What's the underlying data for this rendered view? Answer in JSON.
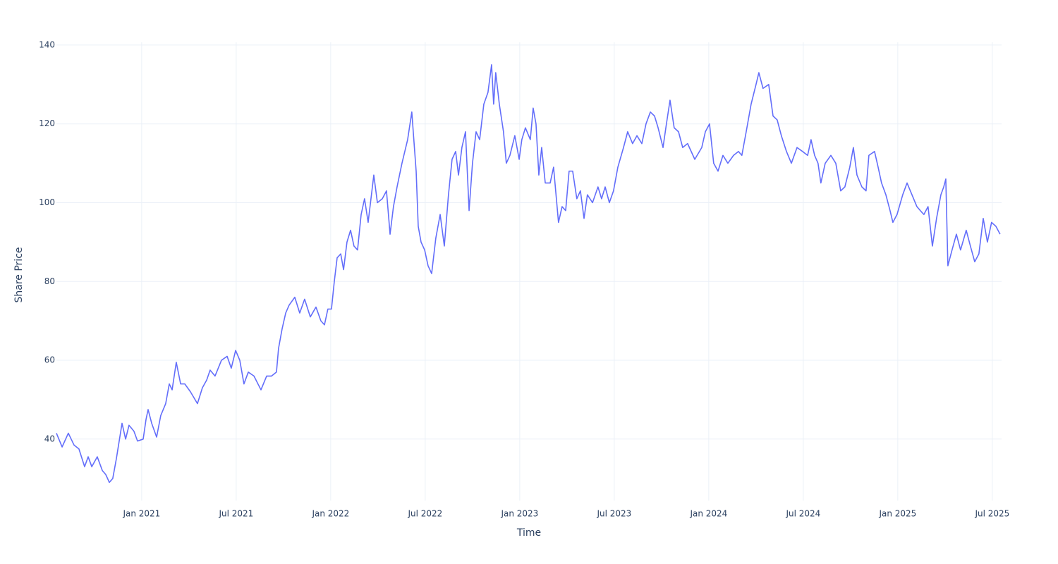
{
  "chart_data": {
    "type": "line",
    "x_label": "Time",
    "y_label": "Share Price",
    "color": "#636efa",
    "grid": true,
    "xlim": [
      2020.549,
      2025.549
    ],
    "ylim": [
      24.4,
      140.7
    ],
    "xticks": [
      {
        "value": 2021.0,
        "label": "Jan 2021"
      },
      {
        "value": 2021.5,
        "label": "Jul 2021"
      },
      {
        "value": 2022.0,
        "label": "Jan 2022"
      },
      {
        "value": 2022.5,
        "label": "Jul 2022"
      },
      {
        "value": 2023.0,
        "label": "Jan 2023"
      },
      {
        "value": 2023.5,
        "label": "Jul 2023"
      },
      {
        "value": 2024.0,
        "label": "Jan 2024"
      },
      {
        "value": 2024.5,
        "label": "Jul 2024"
      },
      {
        "value": 2025.0,
        "label": "Jan 2025"
      },
      {
        "value": 2025.5,
        "label": "Jul 2025"
      }
    ],
    "yticks": [
      40,
      60,
      80,
      100,
      120,
      140
    ],
    "x": [
      2020.549,
      2020.579,
      2020.612,
      2020.642,
      2020.668,
      2020.698,
      2020.717,
      2020.736,
      2020.765,
      2020.792,
      2020.81,
      2020.829,
      2020.847,
      2020.866,
      2020.896,
      2020.915,
      2020.933,
      2020.959,
      2020.978,
      2021.008,
      2021.023,
      2021.034,
      2021.053,
      2021.079,
      2021.101,
      2021.127,
      2021.146,
      2021.161,
      2021.183,
      2021.206,
      2021.228,
      2021.258,
      2021.295,
      2021.321,
      2021.344,
      2021.362,
      2021.388,
      2021.422,
      2021.452,
      2021.474,
      2021.497,
      2021.519,
      2021.541,
      2021.564,
      2021.594,
      2021.631,
      2021.661,
      2021.687,
      2021.713,
      2021.724,
      2021.743,
      2021.762,
      2021.78,
      2021.81,
      2021.836,
      2021.862,
      2021.892,
      2021.922,
      2021.948,
      2021.967,
      2021.985,
      2022.004,
      2022.019,
      2022.034,
      2022.053,
      2022.068,
      2022.086,
      2022.105,
      2022.123,
      2022.142,
      2022.161,
      2022.179,
      2022.198,
      2022.228,
      2022.247,
      2022.273,
      2022.295,
      2022.314,
      2022.332,
      2022.351,
      2022.377,
      2022.407,
      2022.429,
      2022.452,
      2022.463,
      2022.478,
      2022.497,
      2022.515,
      2022.534,
      2022.556,
      2022.579,
      2022.601,
      2022.623,
      2022.642,
      2022.661,
      2022.676,
      2022.694,
      2022.713,
      2022.732,
      2022.75,
      2022.769,
      2022.788,
      2022.81,
      2022.832,
      2022.851,
      2022.862,
      2022.873,
      2022.892,
      2022.914,
      2022.929,
      2022.948,
      2022.974,
      2022.997,
      2023.011,
      2023.03,
      2023.056,
      2023.071,
      2023.086,
      2023.101,
      2023.116,
      2023.135,
      2023.161,
      2023.179,
      2023.205,
      2023.224,
      2023.243,
      2023.261,
      2023.28,
      2023.302,
      2023.321,
      2023.34,
      2023.358,
      2023.385,
      2023.414,
      2023.433,
      2023.452,
      2023.474,
      2023.496,
      2023.519,
      2023.549,
      2023.571,
      2023.597,
      2023.62,
      2023.646,
      2023.668,
      2023.691,
      2023.713,
      2023.732,
      2023.758,
      2023.776,
      2023.795,
      2023.817,
      2023.84,
      2023.862,
      2023.888,
      2023.926,
      2023.963,
      2023.982,
      2024.004,
      2024.026,
      2024.049,
      2024.075,
      2024.101,
      2024.131,
      2024.157,
      2024.175,
      2024.198,
      2024.224,
      2024.25,
      2024.265,
      2024.287,
      2024.317,
      2024.34,
      2024.362,
      2024.384,
      2024.411,
      2024.437,
      2024.467,
      2024.496,
      2024.523,
      2024.541,
      2024.56,
      2024.578,
      2024.593,
      2024.616,
      2024.646,
      2024.672,
      2024.698,
      2024.72,
      2024.746,
      2024.765,
      2024.784,
      2024.81,
      2024.832,
      2024.847,
      2024.877,
      2024.896,
      2024.914,
      2024.937,
      2024.959,
      2024.974,
      2024.996,
      2025.026,
      2025.049,
      2025.075,
      2025.101,
      2025.119,
      2025.138,
      2025.16,
      2025.183,
      2025.205,
      2025.228,
      2025.243,
      2025.254,
      2025.265,
      2025.287,
      2025.31,
      2025.332,
      2025.362,
      2025.384,
      2025.407,
      2025.429,
      2025.452,
      2025.474,
      2025.496,
      2025.519,
      2025.541
    ],
    "values": [
      41.5,
      38,
      41.5,
      38.5,
      37.5,
      33,
      35.5,
      33,
      35.5,
      32,
      31,
      29,
      30,
      35,
      44,
      40,
      43.5,
      42,
      39.5,
      40,
      45,
      47.5,
      44,
      40.5,
      46,
      49,
      54,
      52.5,
      59.5,
      54,
      54,
      52,
      49,
      53,
      55,
      57.5,
      56,
      60,
      61,
      58,
      62.5,
      60,
      54,
      57,
      56,
      52.5,
      56,
      56,
      57,
      63,
      68,
      72,
      74,
      76,
      72,
      75.5,
      71,
      73.5,
      70,
      69,
      73,
      73,
      80,
      86,
      87,
      83,
      90,
      93,
      89,
      88,
      97,
      101,
      95,
      107,
      100,
      101,
      103,
      92,
      99,
      104,
      110,
      116,
      123,
      108,
      94,
      90,
      88,
      84,
      82,
      91,
      97,
      89,
      102,
      111,
      113,
      107,
      114,
      118,
      98,
      110,
      118,
      116,
      125,
      128,
      135,
      125,
      133,
      125,
      118,
      110,
      112,
      117,
      111,
      116,
      119,
      116,
      124,
      120,
      107,
      114,
      105,
      105,
      109,
      95,
      99,
      98,
      108,
      108,
      101,
      103,
      96,
      102,
      100,
      104,
      101,
      104,
      100,
      103,
      109,
      114,
      118,
      115,
      117,
      115,
      120,
      123,
      122,
      119,
      114,
      120,
      126,
      119,
      118,
      114,
      115,
      111,
      114,
      118,
      120,
      110,
      108,
      112,
      110,
      112,
      113,
      112,
      118,
      125,
      130,
      133,
      129,
      130,
      122,
      121,
      117,
      113,
      110,
      114,
      113,
      112,
      116,
      112,
      110,
      105,
      110,
      112,
      110,
      103,
      104,
      109,
      114,
      107,
      104,
      103,
      112,
      113,
      109,
      105,
      102,
      98,
      95,
      97,
      102,
      105,
      102,
      99,
      98,
      97,
      99,
      89,
      96,
      102,
      104,
      106,
      84,
      88,
      92,
      88,
      93,
      89,
      85,
      87,
      96,
      90,
      95,
      94,
      92
    ]
  }
}
